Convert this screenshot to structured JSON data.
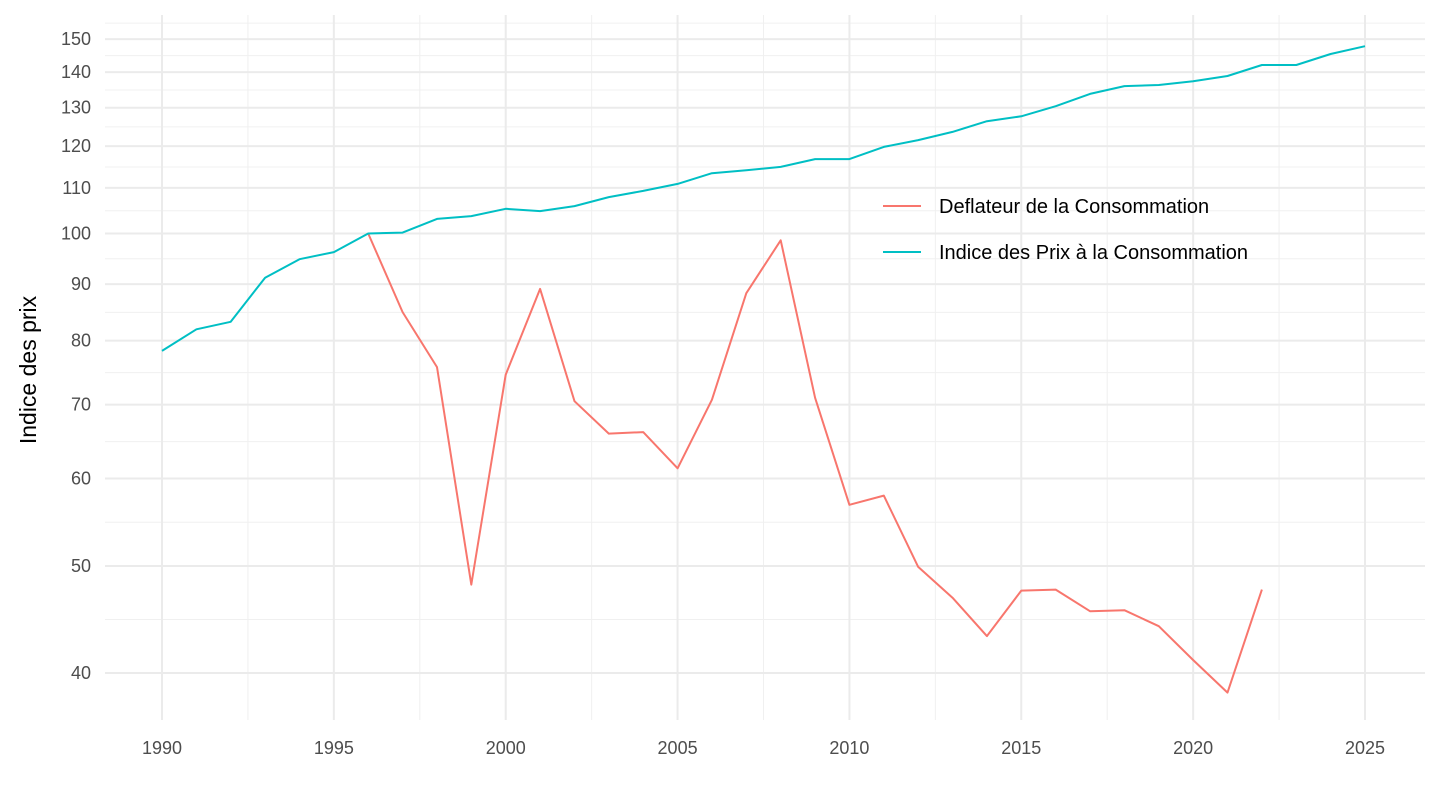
{
  "chart_data": {
    "type": "line",
    "title": "",
    "xlabel": "",
    "ylabel": "Indice des prix",
    "yscale": "log",
    "xlim": [
      1988.4,
      2026.7
    ],
    "ylim": [
      37,
      157
    ],
    "x_ticks": [
      1990,
      1995,
      2000,
      2005,
      2010,
      2015,
      2020,
      2025
    ],
    "y_ticks": [
      40,
      50,
      60,
      70,
      80,
      90,
      100,
      110,
      120,
      130,
      140,
      150
    ],
    "grid": true,
    "legend_position": "top-right inside",
    "series": [
      {
        "name": "Deflateur de la Consommation",
        "color": "#F8766D",
        "x": [
          1996,
          1997,
          1998,
          1999,
          2000,
          2001,
          2002,
          2003,
          2004,
          2005,
          2006,
          2007,
          2008,
          2009,
          2010,
          2011,
          2012,
          2013,
          2014,
          2015,
          2016,
          2017,
          2018,
          2019,
          2020,
          2021,
          2022
        ],
        "values": [
          100,
          84.9,
          75.7,
          48.1,
          74.5,
          89.1,
          70.5,
          65.9,
          66.1,
          61.3,
          70.7,
          88.3,
          98.6,
          71.0,
          56.8,
          57.9,
          49.9,
          46.8,
          43.2,
          47.5,
          47.6,
          45.5,
          45.6,
          44.1,
          41.1,
          38.4,
          47.6
        ]
      },
      {
        "name": "Indice des Prix à la Consommation",
        "color": "#00BFC4",
        "x": [
          1990,
          1991,
          1992,
          1993,
          1994,
          1995,
          1996,
          1997,
          1998,
          1999,
          2000,
          2001,
          2002,
          2003,
          2004,
          2005,
          2006,
          2007,
          2008,
          2009,
          2010,
          2011,
          2012,
          2013,
          2014,
          2015,
          2016,
          2017,
          2018,
          2019,
          2020,
          2021,
          2022,
          2023,
          2024,
          2025
        ],
        "values": [
          78.3,
          81.9,
          83.2,
          91.2,
          94.8,
          96.2,
          100,
          100.2,
          103.1,
          103.7,
          105.3,
          104.8,
          105.9,
          107.9,
          109.3,
          110.9,
          113.4,
          114.1,
          114.9,
          116.8,
          116.8,
          119.8,
          121.5,
          123.6,
          126.4,
          127.7,
          130.4,
          133.8,
          136.0,
          136.3,
          137.4,
          138.9,
          142.1,
          142.1,
          145.4,
          147.8
        ]
      }
    ]
  }
}
